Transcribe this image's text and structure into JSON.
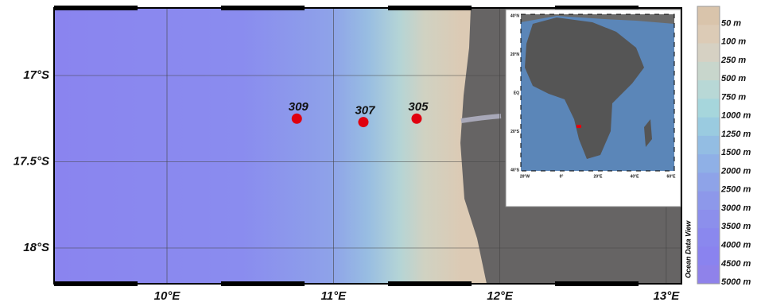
{
  "map": {
    "xticks": [
      {
        "value": 10,
        "label": "10°E"
      },
      {
        "value": 11,
        "label": "11°E"
      },
      {
        "value": 12,
        "label": "12°E"
      },
      {
        "value": 13,
        "label": "13°E"
      }
    ],
    "yticks": [
      {
        "value": -17,
        "label": "17°S"
      },
      {
        "value": -17.5,
        "label": "17.5°S"
      },
      {
        "value": -18,
        "label": "18°S"
      }
    ],
    "stations": [
      {
        "name": "309",
        "lon": 10.78,
        "lat": -17.25
      },
      {
        "name": "307",
        "lon": 11.18,
        "lat": -17.27
      },
      {
        "name": "305",
        "lon": 11.5,
        "lat": -17.25
      }
    ],
    "station_color": "#e0000f",
    "credit": "Ocean Data View",
    "colorbar": {
      "labels": [
        "50 m",
        "100 m",
        "250 m",
        "500 m",
        "750 m",
        "1000 m",
        "1250 m",
        "1500 m",
        "2000 m",
        "2500 m",
        "3000 m",
        "3500 m",
        "4000 m",
        "4500 m",
        "5000 m"
      ],
      "colors": [
        "#d9c4ab",
        "#dccbb6",
        "#d6d1c3",
        "#c8d6cc",
        "#b8d8d6",
        "#a6d6dc",
        "#9acbe0",
        "#93bde3",
        "#8fb0e6",
        "#8ea3e8",
        "#8d98ea",
        "#8c8fec",
        "#8a88ee",
        "#8a83ef",
        "#8f82ea"
      ]
    },
    "inset": {
      "lat_labels": [
        "40°N",
        "20°N",
        "EQ",
        "20°S",
        "40°S"
      ],
      "lon_labels": [
        "20°W",
        "0°",
        "20°E",
        "40°E",
        "60°E"
      ]
    }
  }
}
